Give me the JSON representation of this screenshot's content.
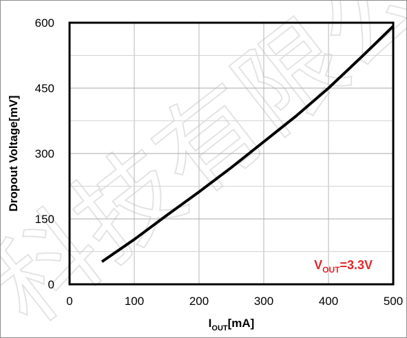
{
  "chart_data": {
    "type": "line",
    "x_label": {
      "main": "I",
      "sub": "OUT",
      "unit": "[mA]"
    },
    "y_label": "Dropout Voltage[mV]",
    "xlim": [
      0,
      500
    ],
    "ylim": [
      0,
      600
    ],
    "x_ticks": [
      0,
      100,
      200,
      300,
      400,
      500
    ],
    "y_ticks": [
      0,
      150,
      300,
      450,
      600
    ],
    "grid": true,
    "minor_grid_y": [
      75,
      225,
      375,
      525
    ],
    "series": [
      {
        "color": "#000000",
        "x": [
          50,
          100,
          150,
          200,
          250,
          300,
          350,
          400,
          450,
          500
        ],
        "y": [
          52,
          103,
          158,
          212,
          268,
          327,
          386,
          450,
          520,
          592
        ]
      }
    ],
    "annotation": {
      "main": "V",
      "sub": "OUT",
      "rest": "=3.3V",
      "color": "#e3262b",
      "placement": "bottom-right"
    }
  }
}
